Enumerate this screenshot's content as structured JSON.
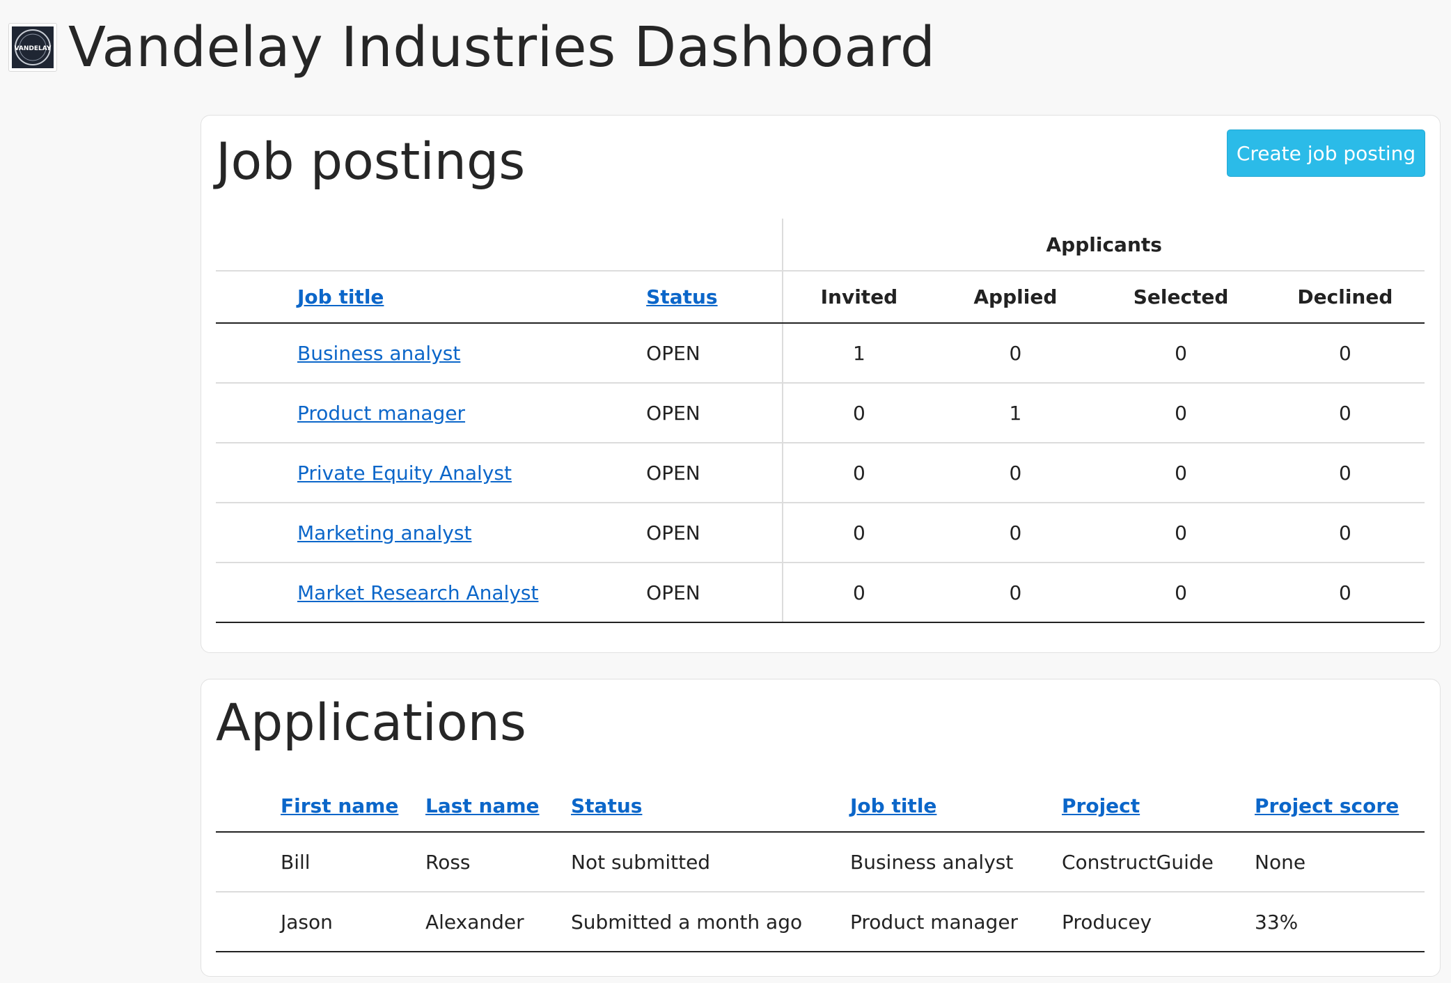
{
  "header": {
    "title": "Vandelay Industries Dashboard",
    "logo_text": "VANDELAY"
  },
  "jobs": {
    "title": "Job postings",
    "create_label": "Create job posting",
    "group_header": "Applicants",
    "columns": {
      "job_title": "Job title",
      "status": "Status",
      "invited": "Invited",
      "applied": "Applied",
      "selected": "Selected",
      "declined": "Declined"
    },
    "rows": [
      {
        "title": "Business analyst",
        "status": "OPEN",
        "invited": "1",
        "applied": "0",
        "selected": "0",
        "declined": "0"
      },
      {
        "title": "Product manager",
        "status": "OPEN",
        "invited": "0",
        "applied": "1",
        "selected": "0",
        "declined": "0"
      },
      {
        "title": "Private Equity Analyst",
        "status": "OPEN",
        "invited": "0",
        "applied": "0",
        "selected": "0",
        "declined": "0"
      },
      {
        "title": "Marketing analyst",
        "status": "OPEN",
        "invited": "0",
        "applied": "0",
        "selected": "0",
        "declined": "0"
      },
      {
        "title": "Market Research Analyst",
        "status": "OPEN",
        "invited": "0",
        "applied": "0",
        "selected": "0",
        "declined": "0"
      }
    ]
  },
  "applications": {
    "title": "Applications",
    "columns": {
      "first_name": "First name",
      "last_name": "Last name",
      "status": "Status",
      "job_title": "Job title",
      "project": "Project",
      "project_score": "Project score"
    },
    "rows": [
      {
        "first": "Bill",
        "last": "Ross",
        "status": "Not submitted",
        "job": "Business analyst",
        "project": "ConstructGuide",
        "score": "None"
      },
      {
        "first": "Jason",
        "last": "Alexander",
        "status": "Submitted a month ago",
        "job": "Product manager",
        "project": "Producey",
        "score": "33%"
      }
    ]
  },
  "colors": {
    "link": "#0b66c9",
    "primary_button": "#2bbbe8",
    "background": "#f8f8f8"
  }
}
